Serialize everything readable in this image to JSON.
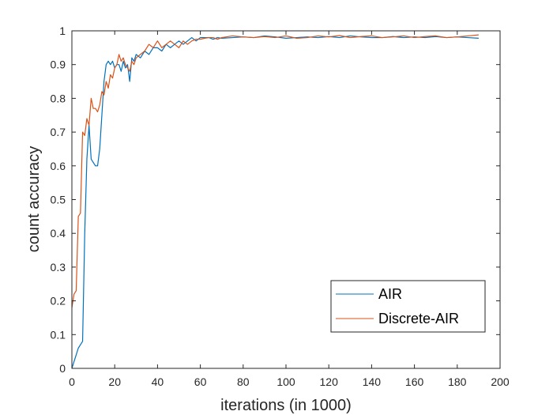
{
  "chart_data": {
    "type": "line",
    "xlabel": "iterations (in 1000)",
    "ylabel": "count accuracy",
    "xlim": [
      0,
      200
    ],
    "ylim": [
      0,
      1
    ],
    "xticks": [
      "0",
      "20",
      "40",
      "60",
      "80",
      "100",
      "120",
      "140",
      "160",
      "180",
      "200"
    ],
    "yticks": [
      "0",
      "0.1",
      "0.2",
      "0.3",
      "0.4",
      "0.5",
      "0.6",
      "0.7",
      "0.8",
      "0.9",
      "1"
    ],
    "grid": false,
    "legend_position": "bottom-right",
    "series": [
      {
        "name": "AIR",
        "color": "#0072BD",
        "x": [
          0,
          1,
          2,
          3,
          4,
          5,
          6,
          7,
          8,
          9,
          10,
          11,
          12,
          13,
          14,
          15,
          16,
          17,
          18,
          19,
          20,
          21,
          22,
          23,
          24,
          25,
          26,
          27,
          28,
          29,
          30,
          32,
          34,
          36,
          38,
          40,
          42,
          44,
          46,
          48,
          50,
          52,
          54,
          56,
          58,
          60,
          62,
          64,
          66,
          68,
          70,
          75,
          80,
          85,
          90,
          95,
          100,
          105,
          110,
          115,
          120,
          125,
          130,
          135,
          140,
          145,
          150,
          155,
          160,
          165,
          170,
          175,
          180,
          185,
          190
        ],
        "y": [
          0.0,
          0.02,
          0.04,
          0.06,
          0.07,
          0.08,
          0.4,
          0.62,
          0.72,
          0.62,
          0.61,
          0.6,
          0.6,
          0.65,
          0.75,
          0.85,
          0.9,
          0.91,
          0.9,
          0.91,
          0.89,
          0.9,
          0.9,
          0.88,
          0.91,
          0.89,
          0.9,
          0.85,
          0.92,
          0.91,
          0.93,
          0.92,
          0.94,
          0.93,
          0.95,
          0.95,
          0.94,
          0.96,
          0.95,
          0.96,
          0.97,
          0.96,
          0.97,
          0.98,
          0.97,
          0.98,
          0.98,
          0.98,
          0.975,
          0.98,
          0.978,
          0.98,
          0.982,
          0.98,
          0.985,
          0.982,
          0.978,
          0.98,
          0.982,
          0.98,
          0.983,
          0.98,
          0.985,
          0.982,
          0.98,
          0.98,
          0.983,
          0.98,
          0.982,
          0.98,
          0.983,
          0.98,
          0.982,
          0.98,
          0.978
        ]
      },
      {
        "name": "Discrete-AIR",
        "color": "#D95319",
        "x": [
          0,
          1,
          2,
          3,
          4,
          5,
          6,
          7,
          8,
          9,
          10,
          11,
          12,
          13,
          14,
          15,
          16,
          17,
          18,
          19,
          20,
          21,
          22,
          23,
          24,
          25,
          26,
          27,
          28,
          29,
          30,
          32,
          34,
          36,
          38,
          40,
          42,
          44,
          46,
          48,
          50,
          52,
          54,
          56,
          58,
          60,
          62,
          64,
          66,
          68,
          70,
          75,
          80,
          85,
          90,
          95,
          100,
          105,
          110,
          115,
          120,
          125,
          130,
          135,
          140,
          145,
          150,
          155,
          160,
          165,
          170,
          175,
          180,
          185,
          190
        ],
        "y": [
          0.18,
          0.22,
          0.23,
          0.45,
          0.46,
          0.7,
          0.69,
          0.74,
          0.72,
          0.8,
          0.77,
          0.77,
          0.76,
          0.78,
          0.82,
          0.81,
          0.85,
          0.83,
          0.87,
          0.86,
          0.89,
          0.9,
          0.93,
          0.91,
          0.92,
          0.9,
          0.89,
          0.88,
          0.91,
          0.9,
          0.92,
          0.93,
          0.94,
          0.96,
          0.95,
          0.97,
          0.95,
          0.96,
          0.97,
          0.96,
          0.95,
          0.97,
          0.96,
          0.97,
          0.975,
          0.975,
          0.978,
          0.98,
          0.98,
          0.975,
          0.98,
          0.985,
          0.982,
          0.98,
          0.983,
          0.98,
          0.985,
          0.978,
          0.98,
          0.985,
          0.982,
          0.986,
          0.98,
          0.983,
          0.985,
          0.98,
          0.982,
          0.985,
          0.98,
          0.983,
          0.985,
          0.98,
          0.982,
          0.985,
          0.988
        ]
      }
    ]
  }
}
